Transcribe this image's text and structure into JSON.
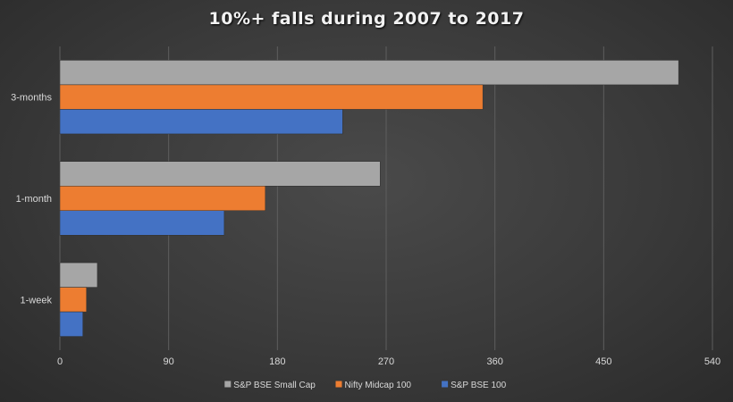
{
  "chart_data": {
    "type": "bar",
    "orientation": "horizontal",
    "title": "10%+ falls during 2007 to 2017",
    "categories": [
      "3-months",
      "1-month",
      "1-week"
    ],
    "series": [
      {
        "name": "S&P BSE Small Cap",
        "color": "#a6a6a6",
        "values": [
          512,
          265,
          31
        ]
      },
      {
        "name": "Nifty Midcap 100",
        "color": "#ed7d31",
        "values": [
          350,
          170,
          22
        ]
      },
      {
        "name": "S&P BSE 100",
        "color": "#4472c4",
        "values": [
          234,
          136,
          19
        ]
      }
    ],
    "xlim": [
      0,
      540
    ],
    "xticks": [
      0,
      90,
      180,
      270,
      360,
      450,
      540
    ],
    "grid": true,
    "legend": "bottom"
  }
}
